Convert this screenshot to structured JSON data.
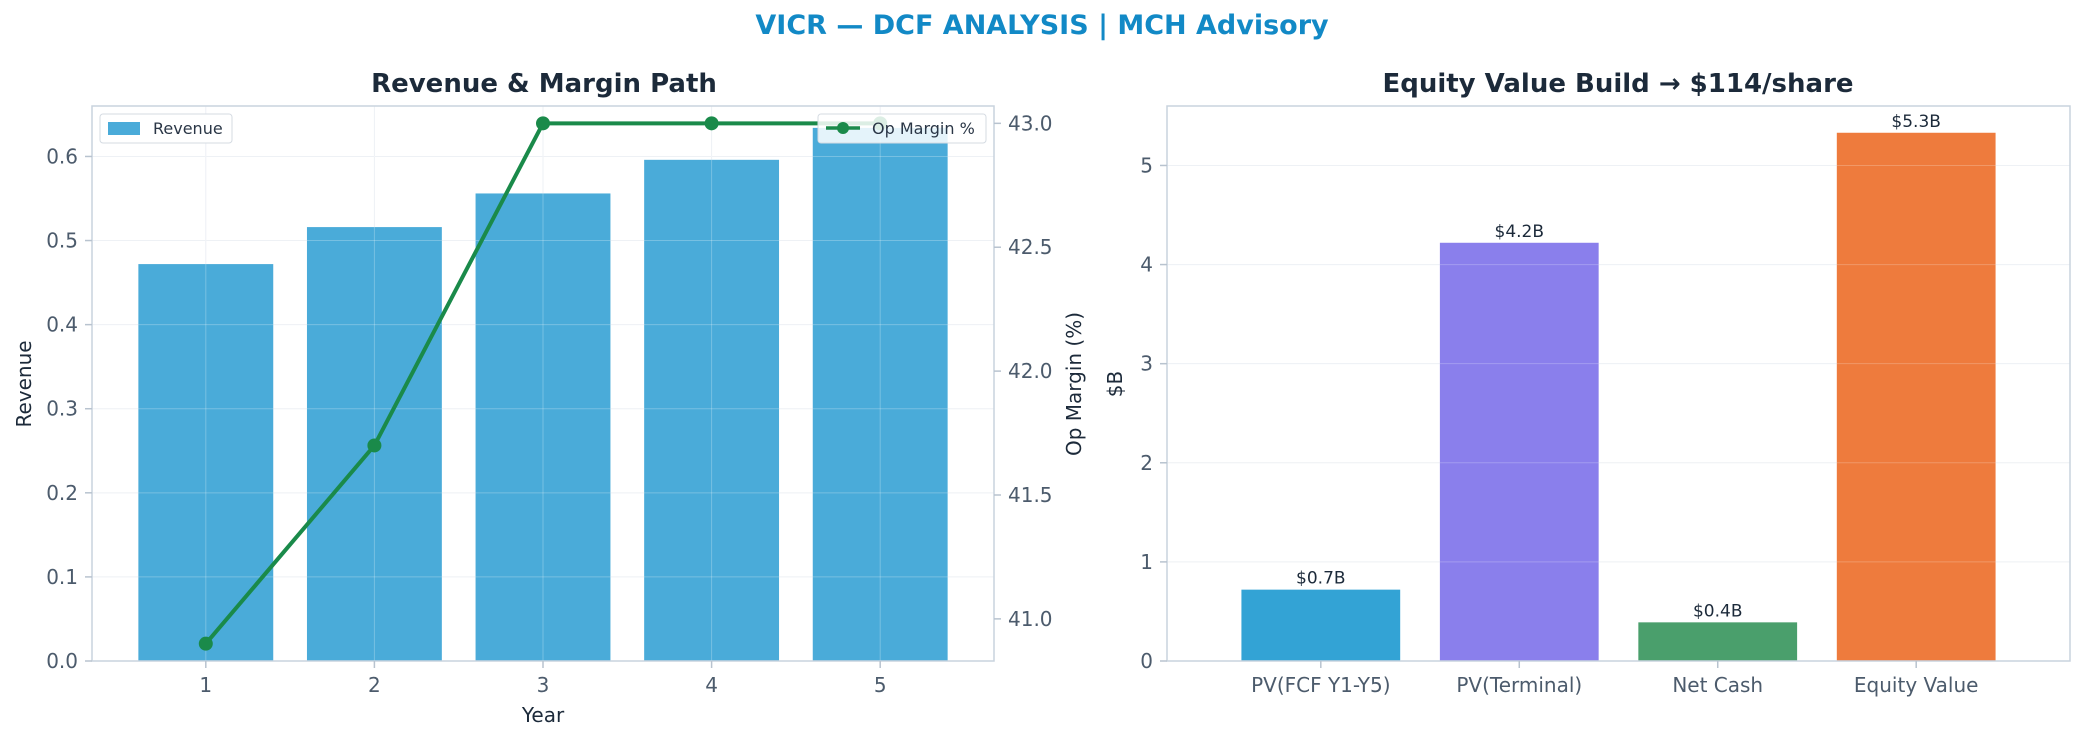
{
  "figure": {
    "suptitle": "VICR — DCF ANALYSIS | MCH Advisory"
  },
  "chart_data": [
    {
      "type": "bar",
      "title": "Revenue & Margin Path",
      "xlabel": "Year",
      "ylabel": "Revenue",
      "y2label": "Op Margin (%)",
      "categories": [
        "1",
        "2",
        "3",
        "4",
        "5"
      ],
      "ylim": [
        0,
        0.66
      ],
      "yticks": [
        "0.0",
        "0.1",
        "0.2",
        "0.3",
        "0.4",
        "0.5",
        "0.6"
      ],
      "y2lim": [
        40.83,
        43.07
      ],
      "y2ticks": [
        "41.0",
        "41.5",
        "42.0",
        "42.5",
        "43.0"
      ],
      "grid": true,
      "series": [
        {
          "name": "Revenue",
          "kind": "bar",
          "axis": "left",
          "color": "#4aabd9",
          "values": [
            0.472,
            0.516,
            0.556,
            0.596,
            0.634
          ]
        },
        {
          "name": "Op Margin %",
          "kind": "line",
          "axis": "right",
          "color": "#1a8a4a",
          "values": [
            40.9,
            41.7,
            43.0,
            43.0,
            43.0
          ]
        }
      ],
      "legends": [
        {
          "placement": "top-left",
          "entries": [
            "Revenue"
          ]
        },
        {
          "placement": "top-right",
          "entries": [
            "Op Margin %"
          ]
        }
      ]
    },
    {
      "type": "bar",
      "title": "Equity Value Build → $114/share",
      "xlabel": "",
      "ylabel": "$B",
      "categories": [
        "PV(FCF Y1-Y5)",
        "PV(Terminal)",
        "Net Cash",
        "Equity Value"
      ],
      "values": [
        0.72,
        4.22,
        0.39,
        5.33
      ],
      "data_labels": [
        "$0.7B",
        "$4.2B",
        "$0.4B",
        "$5.3B"
      ],
      "colors": [
        "#33a3d5",
        "#8a7fec",
        "#4a9f6c",
        "#ee7b3d"
      ],
      "ylim": [
        0,
        5.6
      ],
      "yticks": [
        "0",
        "1",
        "2",
        "3",
        "4",
        "5"
      ],
      "grid": true
    }
  ]
}
